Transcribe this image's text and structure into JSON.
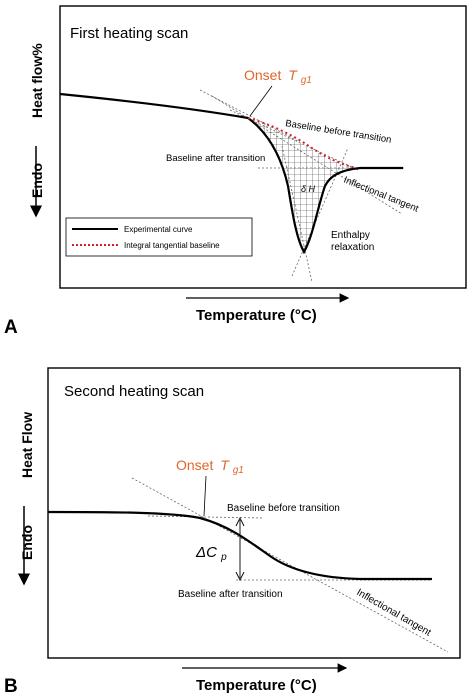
{
  "panel_a": {
    "letter": "A",
    "title": "First heating scan",
    "y_label": "Heat flow%",
    "endo_label": "Endo",
    "x_label": "Temperature (°C)",
    "onset_label": "Onset",
    "onset_symbol": "T",
    "onset_sub": "g1",
    "baseline_before": "Baseline before transition",
    "baseline_after": "Baseline after transition",
    "delta_h": "δ H",
    "inflectional_tangent": "Inflectional tangent",
    "enthalpy_line1": "Enthalpy",
    "enthalpy_line2": "relaxation",
    "legend": {
      "experimental": "Experimental curve",
      "integral": "Integral tangential baseline"
    }
  },
  "panel_b": {
    "letter": "B",
    "title": "Second heating scan",
    "y_label": "Heat Flow",
    "endo_label": "Endo",
    "x_label": "Temperature (°C)",
    "onset_label": "Onset",
    "onset_symbol": "T",
    "onset_sub": "g1",
    "baseline_before": "Baseline before transition",
    "baseline_after": "Baseline after transition",
    "delta_cp_symbol": "ΔC",
    "delta_cp_sub": "p",
    "inflectional_tangent": "Inflectional tangent"
  },
  "colors": {
    "onset_text": "#e0662a",
    "integral_baseline": "#d0202a",
    "curve": "#000000"
  }
}
